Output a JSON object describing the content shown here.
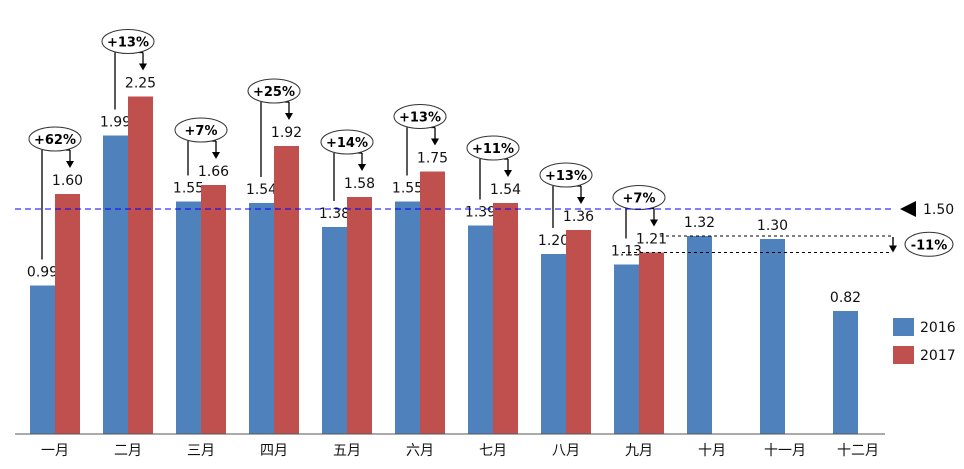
{
  "chart_data": {
    "type": "bar",
    "categories": [
      "一月",
      "二月",
      "三月",
      "四月",
      "五月",
      "六月",
      "七月",
      "八月",
      "九月",
      "十月",
      "十一月",
      "十二月"
    ],
    "series": [
      {
        "name": "2016",
        "color": "#4f81bd",
        "values": [
          0.99,
          1.99,
          1.55,
          1.54,
          1.38,
          1.55,
          1.39,
          1.2,
          1.13,
          1.32,
          1.3,
          0.82
        ]
      },
      {
        "name": "2017",
        "color": "#c0504d",
        "values": [
          1.6,
          2.25,
          1.66,
          1.92,
          1.58,
          1.75,
          1.54,
          1.36,
          1.21,
          null,
          null,
          null
        ]
      }
    ],
    "value_labels": {
      "2016": [
        "0.99",
        "1.99",
        "1.55",
        "1.54",
        "1.38",
        "1.55",
        "1.39",
        "1.20",
        "1.13",
        "1.32",
        "1.30",
        "0.82"
      ],
      "2017": [
        "1.60",
        "2.25",
        "1.66",
        "1.92",
        "1.58",
        "1.75",
        "1.54",
        "1.36",
        "1.21"
      ]
    },
    "growth_annotations": [
      "+62%",
      "+13%",
      "+7%",
      "+25%",
      "+14%",
      "+13%",
      "+11%",
      "+13%",
      "+7%"
    ],
    "reference_line": {
      "value": 1.5,
      "label": "1.50",
      "color": "#0000ff",
      "style": "dashed"
    },
    "change_annotation": {
      "label": "-11%"
    },
    "ylim": [
      0,
      2.6
    ],
    "legend_position": "right",
    "grid": false
  }
}
